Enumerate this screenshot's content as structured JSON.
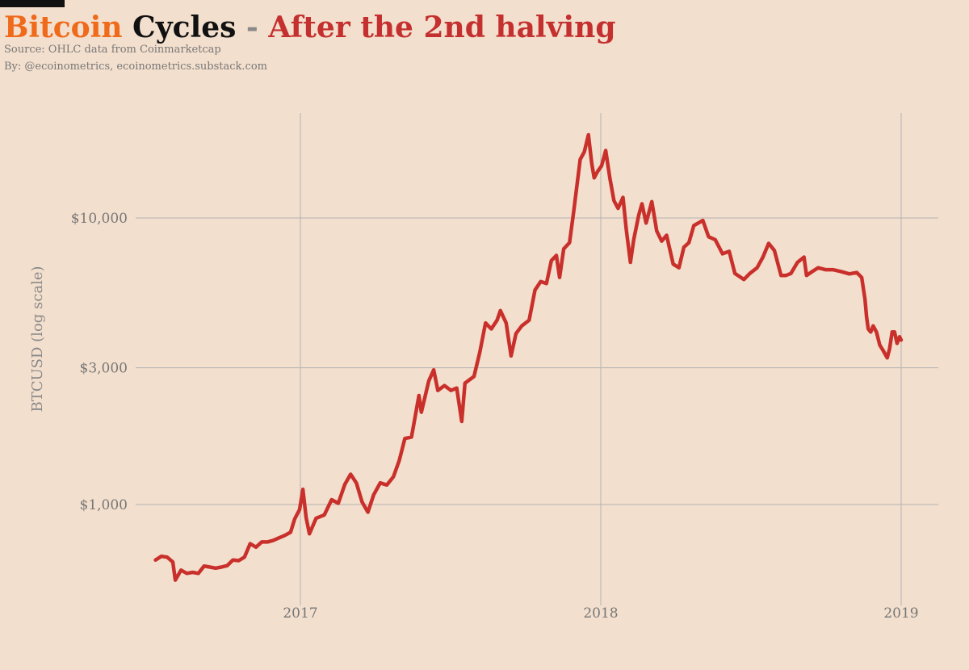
{
  "header": {
    "title_part1": "Bitcoin",
    "title_part2": " Cycles",
    "title_part3": " - ",
    "title_part4": "After the 2nd halving",
    "source_line": "Source: OHLC data from Coinmarketcap",
    "author_line": "By: @ecoinometrics, ecoinometrics.substack.com"
  },
  "colors": {
    "background": "#f3dfcd",
    "title_orange": "#ef6a1a",
    "title_black": "#111111",
    "title_gray": "#8a8a8a",
    "title_red": "#c4302f",
    "line": "#c9302c",
    "grid": "#b3b3b3",
    "tick_text": "#777777"
  },
  "chart_data": {
    "type": "line",
    "ylabel": "BTCUSD (log scale)",
    "y_scale": "log",
    "xlim": [
      "2016-07-09",
      "2019-01-01"
    ],
    "ylim": [
      480,
      20000
    ],
    "x_ticks": [
      {
        "date": "2017-01-01",
        "label": "2017"
      },
      {
        "date": "2018-01-01",
        "label": "2018"
      },
      {
        "date": "2019-01-01",
        "label": "2019"
      }
    ],
    "y_ticks": [
      {
        "value": 1000,
        "label": "$1,000"
      },
      {
        "value": 3000,
        "label": "$3,000"
      },
      {
        "value": 10000,
        "label": "$10,000"
      }
    ],
    "grid": true,
    "series": [
      {
        "name": "",
        "points": [
          [
            "2016-07-09",
            640
          ],
          [
            "2016-07-16",
            660
          ],
          [
            "2016-07-23",
            655
          ],
          [
            "2016-07-30",
            630
          ],
          [
            "2016-08-02",
            545
          ],
          [
            "2016-08-09",
            590
          ],
          [
            "2016-08-16",
            575
          ],
          [
            "2016-08-23",
            580
          ],
          [
            "2016-08-30",
            575
          ],
          [
            "2016-09-06",
            610
          ],
          [
            "2016-09-13",
            605
          ],
          [
            "2016-09-20",
            600
          ],
          [
            "2016-09-27",
            605
          ],
          [
            "2016-10-04",
            612
          ],
          [
            "2016-10-11",
            640
          ],
          [
            "2016-10-18",
            637
          ],
          [
            "2016-10-25",
            655
          ],
          [
            "2016-11-01",
            730
          ],
          [
            "2016-11-08",
            710
          ],
          [
            "2016-11-15",
            740
          ],
          [
            "2016-11-22",
            740
          ],
          [
            "2016-11-29",
            750
          ],
          [
            "2016-12-06",
            765
          ],
          [
            "2016-12-13",
            780
          ],
          [
            "2016-12-20",
            800
          ],
          [
            "2016-12-25",
            890
          ],
          [
            "2016-12-31",
            960
          ],
          [
            "2017-01-04",
            1130
          ],
          [
            "2017-01-08",
            900
          ],
          [
            "2017-01-12",
            790
          ],
          [
            "2017-01-20",
            895
          ],
          [
            "2017-01-30",
            920
          ],
          [
            "2017-02-08",
            1040
          ],
          [
            "2017-02-16",
            1010
          ],
          [
            "2017-02-24",
            1175
          ],
          [
            "2017-03-03",
            1275
          ],
          [
            "2017-03-10",
            1190
          ],
          [
            "2017-03-17",
            1020
          ],
          [
            "2017-03-24",
            940
          ],
          [
            "2017-03-31",
            1080
          ],
          [
            "2017-04-08",
            1190
          ],
          [
            "2017-04-16",
            1170
          ],
          [
            "2017-04-24",
            1250
          ],
          [
            "2017-05-01",
            1420
          ],
          [
            "2017-05-08",
            1700
          ],
          [
            "2017-05-16",
            1720
          ],
          [
            "2017-05-25",
            2400
          ],
          [
            "2017-05-28",
            2100
          ],
          [
            "2017-06-06",
            2700
          ],
          [
            "2017-06-12",
            2950
          ],
          [
            "2017-06-17",
            2500
          ],
          [
            "2017-06-25",
            2600
          ],
          [
            "2017-07-03",
            2500
          ],
          [
            "2017-07-10",
            2550
          ],
          [
            "2017-07-16",
            1950
          ],
          [
            "2017-07-20",
            2650
          ],
          [
            "2017-07-31",
            2800
          ],
          [
            "2017-08-07",
            3400
          ],
          [
            "2017-08-14",
            4300
          ],
          [
            "2017-08-21",
            4100
          ],
          [
            "2017-08-28",
            4400
          ],
          [
            "2017-09-01",
            4750
          ],
          [
            "2017-09-08",
            4300
          ],
          [
            "2017-09-14",
            3300
          ],
          [
            "2017-09-20",
            3950
          ],
          [
            "2017-09-27",
            4200
          ],
          [
            "2017-10-06",
            4400
          ],
          [
            "2017-10-13",
            5600
          ],
          [
            "2017-10-20",
            6000
          ],
          [
            "2017-10-27",
            5900
          ],
          [
            "2017-11-02",
            7100
          ],
          [
            "2017-11-08",
            7400
          ],
          [
            "2017-11-12",
            6200
          ],
          [
            "2017-11-17",
            7800
          ],
          [
            "2017-11-24",
            8200
          ],
          [
            "2017-11-29",
            10500
          ],
          [
            "2017-12-07",
            16000
          ],
          [
            "2017-12-12",
            17000
          ],
          [
            "2017-12-17",
            19500
          ],
          [
            "2017-12-21",
            15500
          ],
          [
            "2017-12-24",
            13800
          ],
          [
            "2017-12-28",
            14500
          ],
          [
            "2018-01-02",
            15200
          ],
          [
            "2018-01-07",
            17200
          ],
          [
            "2018-01-12",
            13800
          ],
          [
            "2018-01-17",
            11500
          ],
          [
            "2018-01-22",
            10800
          ],
          [
            "2018-01-28",
            11800
          ],
          [
            "2018-02-01",
            9100
          ],
          [
            "2018-02-06",
            7000
          ],
          [
            "2018-02-10",
            8400
          ],
          [
            "2018-02-16",
            10200
          ],
          [
            "2018-02-20",
            11200
          ],
          [
            "2018-02-25",
            9600
          ],
          [
            "2018-03-04",
            11400
          ],
          [
            "2018-03-10",
            9000
          ],
          [
            "2018-03-16",
            8300
          ],
          [
            "2018-03-22",
            8700
          ],
          [
            "2018-03-30",
            6900
          ],
          [
            "2018-04-06",
            6700
          ],
          [
            "2018-04-12",
            7900
          ],
          [
            "2018-04-18",
            8200
          ],
          [
            "2018-04-24",
            9400
          ],
          [
            "2018-05-05",
            9800
          ],
          [
            "2018-05-12",
            8600
          ],
          [
            "2018-05-20",
            8400
          ],
          [
            "2018-05-29",
            7500
          ],
          [
            "2018-06-06",
            7650
          ],
          [
            "2018-06-13",
            6400
          ],
          [
            "2018-06-24",
            6100
          ],
          [
            "2018-07-01",
            6400
          ],
          [
            "2018-07-10",
            6700
          ],
          [
            "2018-07-17",
            7300
          ],
          [
            "2018-07-24",
            8150
          ],
          [
            "2018-07-31",
            7700
          ],
          [
            "2018-08-08",
            6300
          ],
          [
            "2018-08-14",
            6300
          ],
          [
            "2018-08-20",
            6400
          ],
          [
            "2018-08-28",
            7000
          ],
          [
            "2018-09-05",
            7300
          ],
          [
            "2018-09-08",
            6300
          ],
          [
            "2018-09-15",
            6500
          ],
          [
            "2018-09-22",
            6700
          ],
          [
            "2018-10-01",
            6600
          ],
          [
            "2018-10-10",
            6600
          ],
          [
            "2018-10-20",
            6500
          ],
          [
            "2018-10-30",
            6380
          ],
          [
            "2018-11-08",
            6450
          ],
          [
            "2018-11-14",
            6200
          ],
          [
            "2018-11-18",
            5200
          ],
          [
            "2018-11-20",
            4500
          ],
          [
            "2018-11-22",
            4100
          ],
          [
            "2018-11-25",
            4000
          ],
          [
            "2018-11-28",
            4200
          ],
          [
            "2018-12-02",
            4000
          ],
          [
            "2018-12-06",
            3600
          ],
          [
            "2018-12-10",
            3450
          ],
          [
            "2018-12-15",
            3250
          ],
          [
            "2018-12-18",
            3500
          ],
          [
            "2018-12-21",
            4000
          ],
          [
            "2018-12-24",
            4000
          ],
          [
            "2018-12-27",
            3650
          ],
          [
            "2018-12-30",
            3850
          ],
          [
            "2019-01-01",
            3750
          ]
        ]
      }
    ]
  }
}
